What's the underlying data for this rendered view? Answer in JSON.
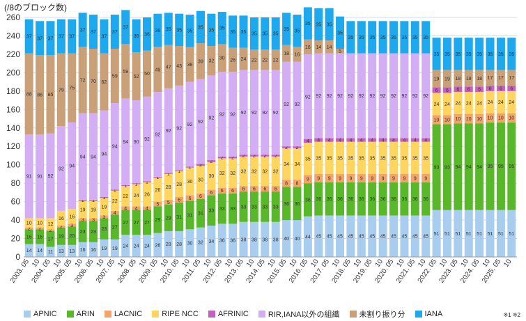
{
  "chart_data": {
    "type": "bar",
    "stacked": true,
    "unit_label": "(/8のブロック数)",
    "note": "※1 ※2",
    "ylim": [
      0,
      260
    ],
    "yticks": [
      0,
      20,
      40,
      60,
      80,
      100,
      120,
      140,
      160,
      180,
      200,
      220,
      240,
      260
    ],
    "categories": [
      "2003. 05",
      "2003. 10",
      "2004. 05",
      "2004. 10",
      "2005. 05",
      "2005. 10",
      "2006. 05",
      "2006. 10",
      "2007. 05",
      "2007. 10",
      "2008. 05",
      "2008. 10",
      "2009. 05",
      "2009. 10",
      "2010. 05",
      "2010. 10",
      "2011. 05",
      "2011. 10",
      "2012. 05",
      "2012. 10",
      "2013. 05",
      "2013. 10",
      "2014. 05",
      "2014. 10",
      "2015. 05",
      "2015. 10",
      "2016. 05",
      "2016. 10",
      "2017. 05",
      "2017. 10",
      "2018. 05",
      "2018. 10",
      "2019. 05",
      "2019. 10",
      "2020. 05",
      "2020. 10",
      "2021. 05",
      "2021. 10",
      "2022. 05",
      "2022. 10",
      "2023. 05",
      "2023. 10",
      "2024. 05",
      "2024. 10",
      "2025. 05",
      "2025. 10"
    ],
    "x_labels": [
      {
        "index": 0,
        "text": "2003. 05"
      },
      {
        "index": 1,
        "text": "10"
      },
      {
        "index": 2,
        "text": "2004. 05"
      },
      {
        "index": 3,
        "text": "10"
      },
      {
        "index": 4,
        "text": "2005. 05"
      },
      {
        "index": 5,
        "text": "10"
      },
      {
        "index": 6,
        "text": "2006. 05"
      },
      {
        "index": 7,
        "text": "10"
      },
      {
        "index": 8,
        "text": "2007. 05"
      },
      {
        "index": 9,
        "text": "10"
      },
      {
        "index": 10,
        "text": "2008. 05"
      },
      {
        "index": 11,
        "text": "10"
      },
      {
        "index": 12,
        "text": "2009. 05"
      },
      {
        "index": 13,
        "text": "10"
      },
      {
        "index": 14,
        "text": "2010. 05"
      },
      {
        "index": 15,
        "text": "10"
      },
      {
        "index": 16,
        "text": "2011. 05"
      },
      {
        "index": 17,
        "text": "10"
      },
      {
        "index": 18,
        "text": "2012. 05"
      },
      {
        "index": 19,
        "text": "10"
      },
      {
        "index": 20,
        "text": "2013. 05"
      },
      {
        "index": 21,
        "text": "10"
      },
      {
        "index": 22,
        "text": "2014. 05"
      },
      {
        "index": 23,
        "text": "10"
      },
      {
        "index": 24,
        "text": "2015. 05"
      },
      {
        "index": 25,
        "text": "10"
      },
      {
        "index": 26,
        "text": "2016. 05"
      },
      {
        "index": 27,
        "text": "10"
      },
      {
        "index": 28,
        "text": "2017. 05"
      },
      {
        "index": 29,
        "text": "10"
      },
      {
        "index": 30,
        "text": "2018. 05"
      },
      {
        "index": 31,
        "text": "10"
      },
      {
        "index": 32,
        "text": "2019. 05"
      },
      {
        "index": 33,
        "text": "10"
      },
      {
        "index": 34,
        "text": "2020. 05"
      },
      {
        "index": 35,
        "text": "10"
      },
      {
        "index": 36,
        "text": "2021. 05"
      },
      {
        "index": 37,
        "text": "10"
      },
      {
        "index": 38,
        "text": "2022. 05"
      },
      {
        "index": 39,
        "text": "10"
      },
      {
        "index": 40,
        "text": "2023. 05"
      },
      {
        "index": 41,
        "text": "10"
      },
      {
        "index": 42,
        "text": "2024. 05"
      },
      {
        "index": 43,
        "text": "10"
      },
      {
        "index": 44,
        "text": "2025. 05"
      },
      {
        "index": 45,
        "text": "10"
      }
    ],
    "series": [
      {
        "name": "APNIC",
        "color": "#a9cdee",
        "values": [
          14,
          14,
          11,
          13,
          13,
          16,
          16,
          19,
          19,
          24,
          24,
          24,
          26,
          28,
          28,
          30,
          32,
          34,
          36,
          36,
          38,
          38,
          38,
          38,
          40,
          40,
          44,
          45,
          45,
          45,
          45,
          45,
          45,
          45,
          45,
          45,
          45,
          45,
          51,
          51,
          51,
          51,
          51,
          51,
          51,
          51
        ]
      },
      {
        "name": "ARIN",
        "color": "#59b82a",
        "values": [
          16,
          16,
          17,
          19,
          20,
          23,
          23,
          23,
          27,
          27,
          27,
          27,
          29,
          29,
          31,
          31,
          31,
          33,
          33,
          33,
          33,
          33,
          33,
          33,
          36,
          36,
          36,
          36,
          36,
          36,
          36,
          36,
          36,
          36,
          36,
          36,
          36,
          36,
          93,
          93,
          94,
          94,
          94,
          95,
          95,
          95
        ]
      },
      {
        "name": "LACNIC",
        "color": "#f4a467",
        "values": [
          2,
          2,
          2,
          2,
          3,
          3,
          3,
          3,
          4,
          4,
          4,
          4,
          5,
          5,
          6,
          6,
          6,
          6,
          6,
          6,
          6,
          6,
          6,
          6,
          8,
          8,
          9,
          9,
          9,
          9,
          9,
          9,
          9,
          9,
          9,
          9,
          9,
          9,
          10,
          10,
          10,
          10,
          10,
          10,
          10,
          10
        ]
      },
      {
        "name": "RIPE NCC",
        "color": "#fed55e",
        "values": [
          10,
          10,
          12,
          16,
          16,
          19,
          19,
          19,
          22,
          22,
          24,
          26,
          26,
          28,
          28,
          30,
          30,
          30,
          32,
          32,
          32,
          32,
          32,
          32,
          34,
          34,
          35,
          35,
          35,
          35,
          35,
          35,
          35,
          35,
          35,
          35,
          35,
          35,
          24,
          24,
          24,
          24,
          24,
          24,
          24,
          24
        ]
      },
      {
        "name": "AFRINIC",
        "color": "#c560be",
        "values": [
          0,
          0,
          0,
          0,
          0,
          1,
          1,
          1,
          1,
          1,
          1,
          1,
          1,
          1,
          1,
          1,
          2,
          2,
          2,
          2,
          2,
          2,
          2,
          2,
          2,
          2,
          4,
          4,
          4,
          4,
          4,
          4,
          4,
          4,
          4,
          4,
          4,
          4,
          6,
          6,
          6,
          6,
          6,
          6,
          6,
          6
        ]
      },
      {
        "name": "RIR,IANA以外の組織",
        "color": "#d3aef4",
        "values": [
          91,
          91,
          92,
          92,
          94,
          94,
          94,
          94,
          94,
          94,
          90,
          92,
          92,
          92,
          92,
          92,
          92,
          92,
          92,
          92,
          92,
          92,
          92,
          92,
          92,
          92,
          92,
          92,
          92,
          92,
          92,
          92,
          92,
          92,
          92,
          92,
          92,
          92,
          0,
          0,
          0,
          0,
          0,
          0,
          0,
          0
        ]
      },
      {
        "name": "未割り振り分",
        "color": "#c9a078",
        "values": [
          88,
          86,
          85,
          79,
          75,
          72,
          70,
          62,
          59,
          59,
          52,
          50,
          49,
          47,
          43,
          38,
          39,
          32,
          30,
          26,
          24,
          22,
          22,
          22,
          18,
          16,
          16,
          14,
          14,
          5,
          0,
          0,
          0,
          0,
          0,
          0,
          0,
          0,
          19,
          19,
          18,
          18,
          18,
          17,
          17,
          17
        ]
      },
      {
        "name": "IANA",
        "color": "#1ea9ee",
        "values": [
          37,
          37,
          37,
          37,
          37,
          37,
          37,
          37,
          37,
          37,
          36,
          36,
          36,
          35,
          35,
          35,
          35,
          35,
          35,
          35,
          35,
          35,
          35,
          35,
          35,
          35,
          35,
          35,
          35,
          35,
          35,
          35,
          35,
          35,
          35,
          35,
          35,
          35,
          35,
          35,
          35,
          35,
          35,
          35,
          35,
          35
        ]
      }
    ]
  }
}
